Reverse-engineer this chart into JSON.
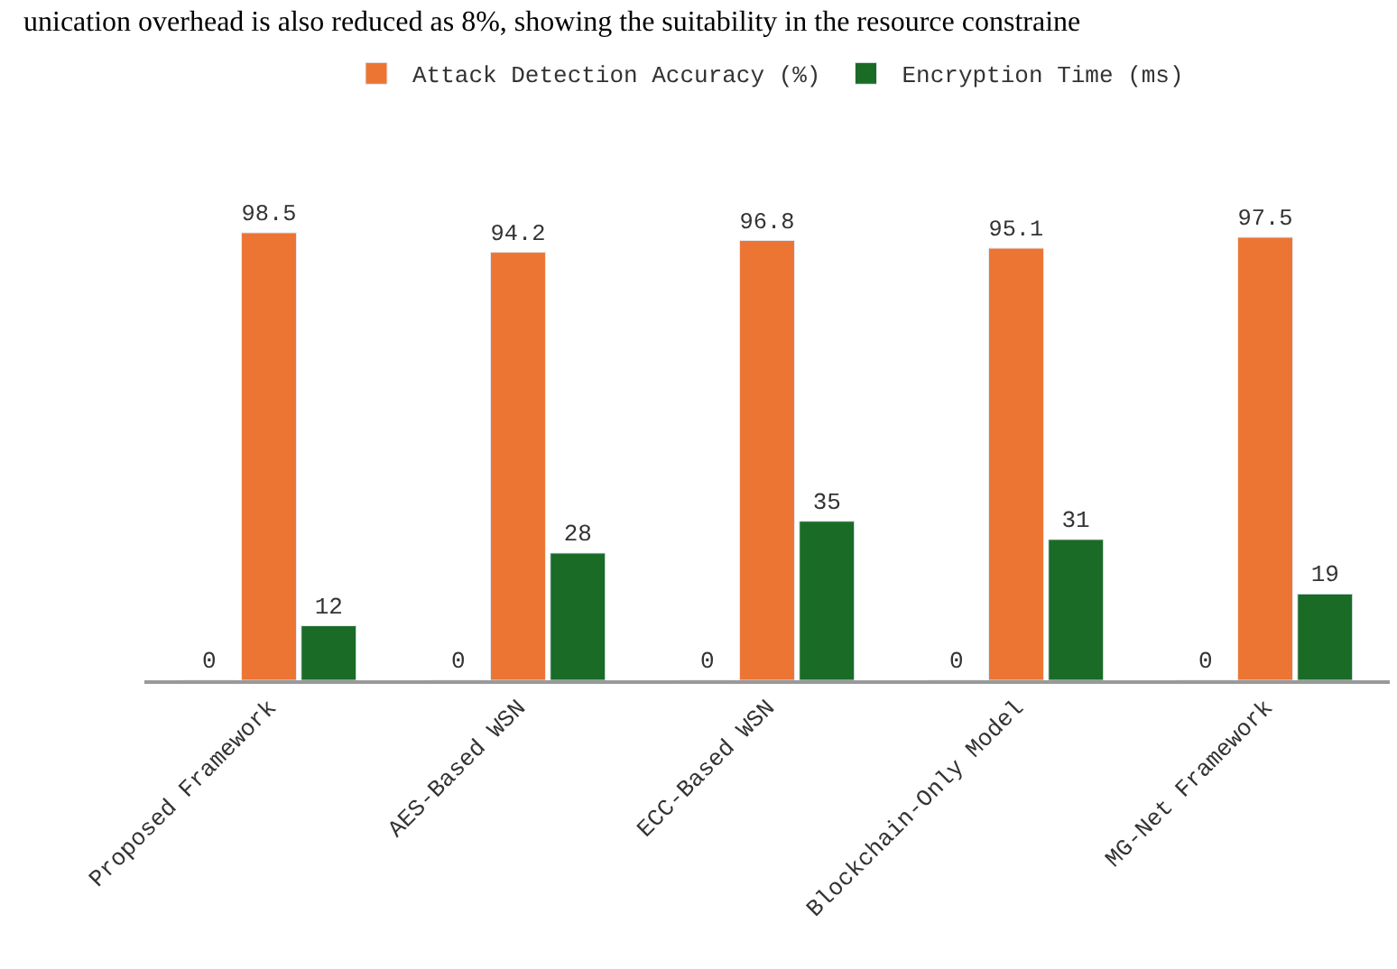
{
  "chart_data": {
    "type": "bar",
    "annotations": [
      "unication overhead is also reduced as 8%, showing the suitability in the resource constraine"
    ],
    "categories": [
      "Proposed Framework",
      "AES-Based WSN",
      "ECC-Based WSN",
      "Blockchain-Only Model",
      "MG-Net Framework"
    ],
    "series": [
      {
        "values": [
          0,
          0,
          0,
          0,
          0
        ]
      },
      {
        "name": "Attack Detection Accuracy (%)",
        "color": "#ed7534",
        "values": [
          98.5,
          94.2,
          96.8,
          95.1,
          97.5
        ]
      },
      {
        "name": "Encryption Time (ms)",
        "color": "#1a6b26",
        "values": [
          12,
          28,
          35,
          31,
          19
        ]
      }
    ],
    "data_labels": true,
    "legend": "top"
  }
}
